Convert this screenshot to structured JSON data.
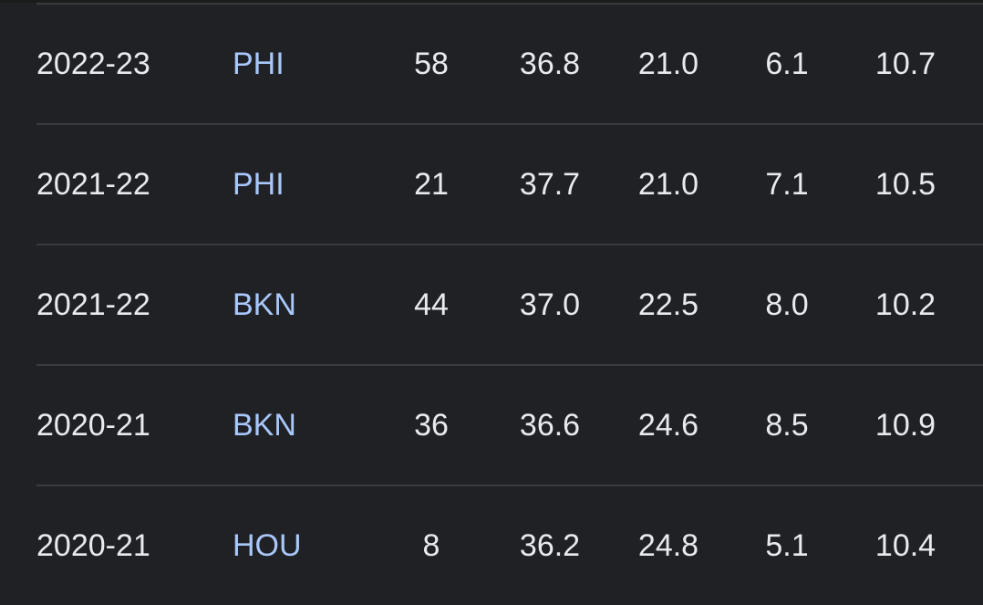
{
  "colors": {
    "background": "#202124",
    "text": "#e8eaed",
    "team_link": "#a8c7fa",
    "divider": "#3a3b3d"
  },
  "rows": [
    {
      "season": "2022-23",
      "team": "PHI",
      "gp": "58",
      "min": "36.8",
      "pts": "21.0",
      "reb": "6.1",
      "ast": "10.7"
    },
    {
      "season": "2021-22",
      "team": "PHI",
      "gp": "21",
      "min": "37.7",
      "pts": "21.0",
      "reb": "7.1",
      "ast": "10.5"
    },
    {
      "season": "2021-22",
      "team": "BKN",
      "gp": "44",
      "min": "37.0",
      "pts": "22.5",
      "reb": "8.0",
      "ast": "10.2"
    },
    {
      "season": "2020-21",
      "team": "BKN",
      "gp": "36",
      "min": "36.6",
      "pts": "24.6",
      "reb": "8.5",
      "ast": "10.9"
    },
    {
      "season": "2020-21",
      "team": "HOU",
      "gp": "8",
      "min": "36.2",
      "pts": "24.8",
      "reb": "5.1",
      "ast": "10.4"
    }
  ]
}
